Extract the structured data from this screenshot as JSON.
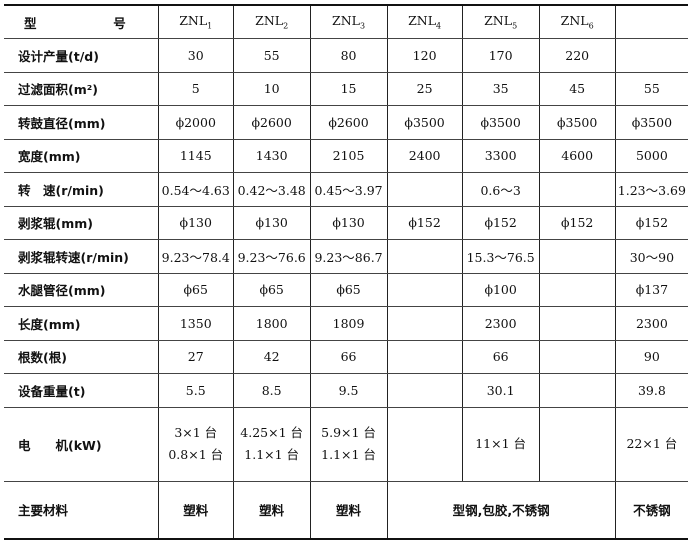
{
  "header": {
    "label_left": "型",
    "label_right": "号",
    "models": [
      {
        "base": "ZNL",
        "sub": "1"
      },
      {
        "base": "ZNL",
        "sub": "2"
      },
      {
        "base": "ZNL",
        "sub": "3"
      },
      {
        "base": "ZNL",
        "sub": "4"
      },
      {
        "base": "ZNL",
        "sub": "5"
      },
      {
        "base": "ZNL",
        "sub": "6"
      },
      {
        "base": "",
        "sub": ""
      }
    ]
  },
  "rows": [
    {
      "label": "设计产量(t/d)",
      "cells": [
        "30",
        "55",
        "80",
        "120",
        "170",
        "220",
        ""
      ]
    },
    {
      "label": "过滤面积(m²)",
      "cells": [
        "5",
        "10",
        "15",
        "25",
        "35",
        "45",
        "55"
      ]
    },
    {
      "label": "转鼓直径(mm)",
      "cells": [
        "ϕ2000",
        "ϕ2600",
        "ϕ2600",
        "ϕ3500",
        "ϕ3500",
        "ϕ3500",
        "ϕ3500"
      ]
    },
    {
      "label": "宽度(mm)",
      "cells": [
        "1145",
        "1430",
        "2105",
        "2400",
        "3300",
        "4600",
        "5000"
      ]
    },
    {
      "label": "转　速(r/min)",
      "cells": [
        "0.54～4.63",
        "0.42～3.48",
        "0.45～3.97",
        "",
        "0.6～3",
        "",
        "1.23～3.69"
      ]
    },
    {
      "label": "剥浆辊(mm)",
      "cells": [
        "ϕ130",
        "ϕ130",
        "ϕ130",
        "ϕ152",
        "ϕ152",
        "ϕ152",
        "ϕ152"
      ]
    },
    {
      "label": "剥浆辊转速(r/min)",
      "cells": [
        "9.23～78.4",
        "9.23～76.6",
        "9.23～86.7",
        "",
        "15.3～76.5",
        "",
        "30～90"
      ]
    },
    {
      "label": "水腿管径(mm)",
      "cells": [
        "ϕ65",
        "ϕ65",
        "ϕ65",
        "",
        "ϕ100",
        "",
        "ϕ137"
      ]
    },
    {
      "label": "长度(mm)",
      "cells": [
        "1350",
        "1800",
        "1809",
        "",
        "2300",
        "",
        "2300"
      ]
    },
    {
      "label": "根数(根)",
      "cells": [
        "27",
        "42",
        "66",
        "",
        "66",
        "",
        "90"
      ]
    },
    {
      "label": "设备重量(t)",
      "cells": [
        "5.5",
        "8.5",
        "9.5",
        "",
        "30.1",
        "",
        "39.8"
      ]
    }
  ],
  "motor": {
    "label": "电　　机(kW)",
    "cells": [
      [
        "3×1 台",
        "0.8×1 台"
      ],
      [
        "4.25×1 台",
        "1.1×1 台"
      ],
      [
        "5.9×1 台",
        "1.1×1 台"
      ],
      [
        ""
      ],
      [
        "11×1 台"
      ],
      [
        ""
      ],
      [
        "22×1 台"
      ]
    ]
  },
  "material": {
    "label": "主要材料",
    "cells": [
      "塑料",
      "塑料",
      "塑料",
      "型钢,包胶,不锈钢",
      "不锈钢"
    ]
  }
}
